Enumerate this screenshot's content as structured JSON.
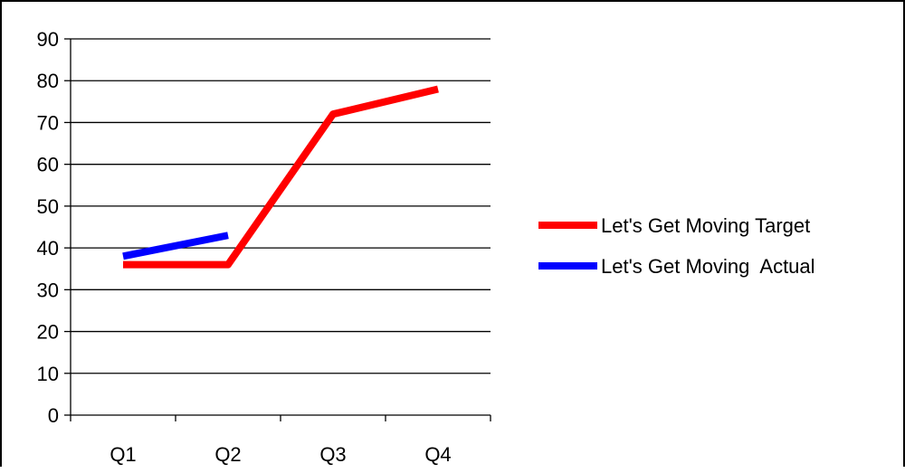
{
  "chart_data": {
    "type": "line",
    "title": "",
    "xlabel": "",
    "ylabel": "",
    "categories": [
      "Q1",
      "Q2",
      "Q3",
      "Q4"
    ],
    "ylim": [
      0,
      90
    ],
    "yticks": [
      0,
      10,
      20,
      30,
      40,
      50,
      60,
      70,
      80,
      90
    ],
    "grid": "horizontal",
    "legend": "right",
    "series": [
      {
        "name": "Let's Get Moving Target",
        "values": [
          36,
          36,
          72,
          78
        ],
        "color": "#FF0000"
      },
      {
        "name": "Let's Get Moving  Actual",
        "values": [
          38,
          43,
          null,
          null
        ],
        "color": "#0000FF"
      }
    ]
  }
}
